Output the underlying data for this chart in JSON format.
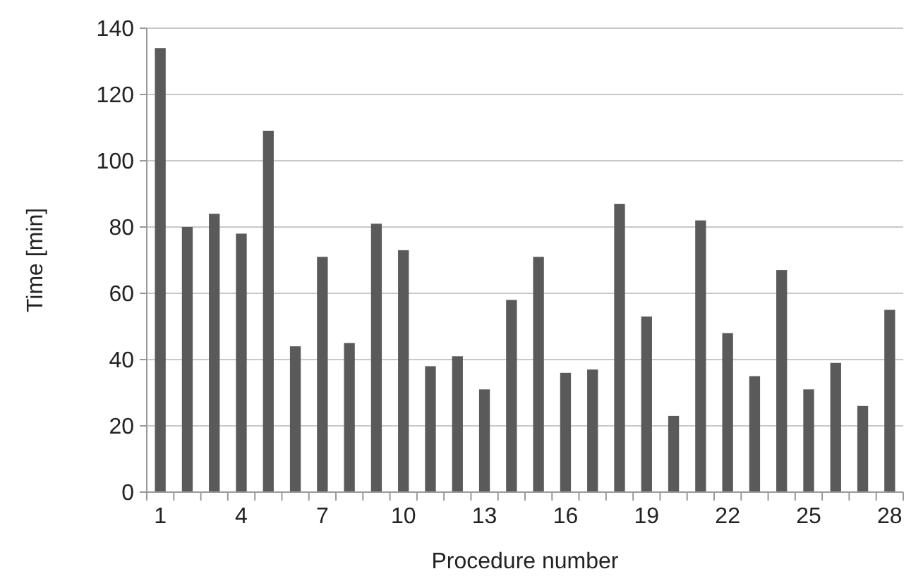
{
  "chart_data": {
    "type": "bar",
    "xlabel": "Procedure number",
    "ylabel": "Time [min]",
    "categories": [
      "1",
      null,
      null,
      "4",
      null,
      null,
      "7",
      null,
      null,
      "10",
      null,
      null,
      "13",
      null,
      null,
      "16",
      null,
      null,
      "19",
      null,
      null,
      "22",
      null,
      null,
      "25",
      null,
      null,
      "28"
    ],
    "values": [
      134,
      80,
      84,
      78,
      109,
      44,
      71,
      45,
      81,
      73,
      38,
      41,
      31,
      58,
      71,
      36,
      37,
      87,
      53,
      23,
      82,
      48,
      35,
      67,
      31,
      39,
      26,
      55
    ],
    "color": "#5a5a5a",
    "ylim": [
      0,
      140
    ],
    "yticks": [
      0,
      20,
      40,
      60,
      80,
      100,
      120,
      140
    ],
    "grid": "y"
  }
}
